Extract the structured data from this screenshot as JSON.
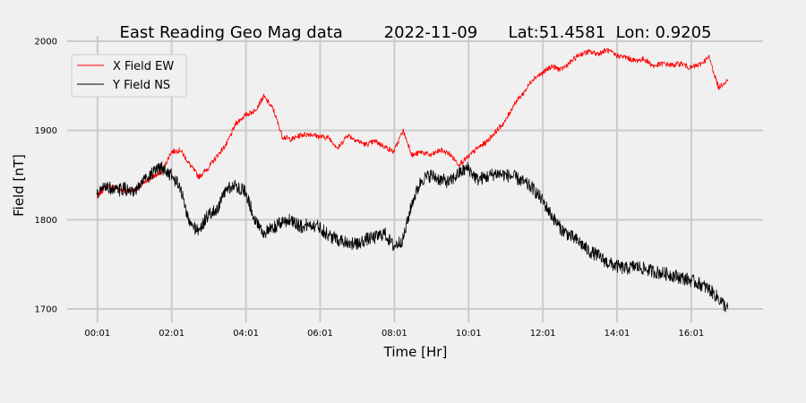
{
  "chart_data": {
    "type": "line",
    "title": "East Reading Geo Mag data        2022-11-09      Lat:51.4581  Lon: 0.9205",
    "xlabel": "Time  [Hr]",
    "ylabel": "Field  [nT]",
    "x_unit": "hours",
    "x_ticks": [
      {
        "value": 0.0167,
        "label": "00:01"
      },
      {
        "value": 2.0167,
        "label": "02:01"
      },
      {
        "value": 4.0167,
        "label": "04:01"
      },
      {
        "value": 6.0167,
        "label": "06:01"
      },
      {
        "value": 8.0167,
        "label": "08:01"
      },
      {
        "value": 10.0167,
        "label": "10:01"
      },
      {
        "value": 12.0167,
        "label": "12:01"
      },
      {
        "value": 14.0167,
        "label": "14:01"
      },
      {
        "value": 16.0167,
        "label": "16:01"
      }
    ],
    "y_ticks": [
      1700,
      1800,
      1900,
      2000
    ],
    "xlim": [
      -0.8,
      17.95
    ],
    "ylim": [
      1685,
      2006
    ],
    "grid": true,
    "legend": "top-left",
    "series": [
      {
        "name": "X Field EW",
        "color": "#ff0000",
        "x": [
          0.0,
          0.25,
          0.5,
          0.75,
          1.0,
          1.25,
          1.5,
          1.75,
          2.0,
          2.25,
          2.5,
          2.75,
          3.0,
          3.25,
          3.5,
          3.75,
          4.0,
          4.25,
          4.5,
          4.75,
          5.0,
          5.25,
          5.5,
          5.75,
          6.0,
          6.25,
          6.5,
          6.75,
          7.0,
          7.25,
          7.5,
          7.75,
          8.0,
          8.25,
          8.5,
          8.75,
          9.0,
          9.25,
          9.5,
          9.75,
          10.0,
          10.25,
          10.5,
          10.75,
          11.0,
          11.25,
          11.5,
          11.75,
          12.0,
          12.25,
          12.5,
          12.75,
          13.0,
          13.25,
          13.5,
          13.75,
          14.0,
          14.25,
          14.5,
          14.75,
          15.0,
          15.25,
          15.5,
          15.75,
          16.0,
          16.25,
          16.5,
          16.75,
          17.0
        ],
        "y": [
          1825,
          1838,
          1836,
          1832,
          1833,
          1840,
          1848,
          1853,
          1876,
          1878,
          1862,
          1848,
          1858,
          1872,
          1885,
          1908,
          1917,
          1922,
          1938,
          1924,
          1893,
          1890,
          1895,
          1896,
          1893,
          1892,
          1880,
          1895,
          1889,
          1884,
          1888,
          1882,
          1876,
          1900,
          1872,
          1876,
          1872,
          1878,
          1874,
          1862,
          1870,
          1880,
          1887,
          1899,
          1910,
          1930,
          1942,
          1958,
          1964,
          1972,
          1968,
          1976,
          1985,
          1988,
          1986,
          1990,
          1984,
          1982,
          1978,
          1980,
          1972,
          1975,
          1973,
          1975,
          1970,
          1974,
          1982,
          1948,
          1957
        ]
      },
      {
        "name": "Y Field NS",
        "color": "#000000",
        "x": [
          0.0,
          0.25,
          0.5,
          0.75,
          1.0,
          1.25,
          1.5,
          1.75,
          2.0,
          2.25,
          2.5,
          2.75,
          3.0,
          3.25,
          3.5,
          3.75,
          4.0,
          4.25,
          4.5,
          4.75,
          5.0,
          5.25,
          5.5,
          5.75,
          6.0,
          6.25,
          6.5,
          6.75,
          7.0,
          7.25,
          7.5,
          7.75,
          8.0,
          8.25,
          8.5,
          8.75,
          9.0,
          9.25,
          9.5,
          9.75,
          10.0,
          10.25,
          10.5,
          10.75,
          11.0,
          11.25,
          11.5,
          11.75,
          12.0,
          12.25,
          12.5,
          12.75,
          13.0,
          13.25,
          13.5,
          13.75,
          14.0,
          14.25,
          14.5,
          14.75,
          15.0,
          15.25,
          15.5,
          15.75,
          16.0,
          16.25,
          16.5,
          16.75,
          17.0
        ],
        "y": [
          1828,
          1838,
          1832,
          1835,
          1828,
          1845,
          1852,
          1858,
          1850,
          1836,
          1795,
          1788,
          1805,
          1812,
          1835,
          1838,
          1832,
          1802,
          1785,
          1790,
          1798,
          1800,
          1792,
          1795,
          1792,
          1782,
          1778,
          1775,
          1772,
          1778,
          1780,
          1785,
          1770,
          1778,
          1820,
          1845,
          1850,
          1845,
          1842,
          1852,
          1858,
          1845,
          1848,
          1852,
          1850,
          1848,
          1842,
          1835,
          1822,
          1805,
          1790,
          1782,
          1775,
          1765,
          1760,
          1752,
          1748,
          1745,
          1748,
          1745,
          1742,
          1740,
          1738,
          1735,
          1732,
          1728,
          1722,
          1712,
          1700
        ]
      }
    ]
  }
}
